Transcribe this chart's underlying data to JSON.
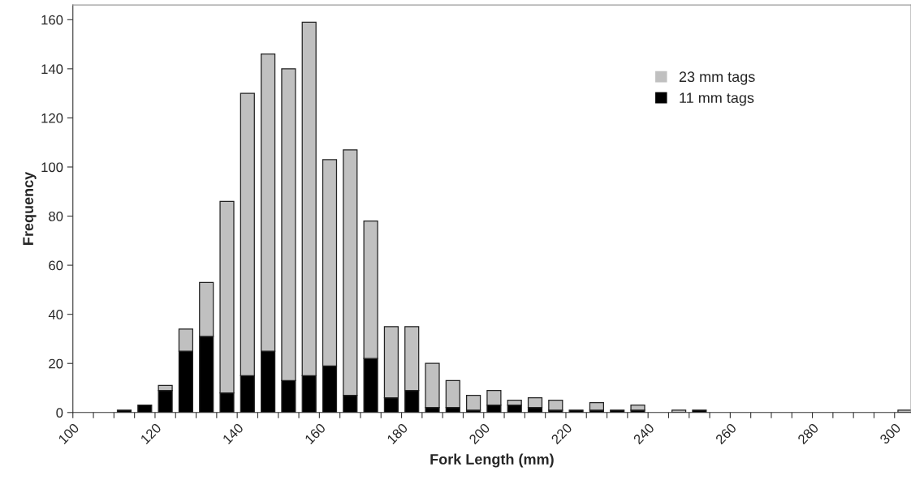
{
  "chart_data": {
    "type": "bar",
    "xlabel": "Fork Length (mm)",
    "ylabel": "Frequency",
    "x": [
      102.5,
      107.5,
      112.5,
      117.5,
      122.5,
      127.5,
      132.5,
      137.5,
      142.5,
      147.5,
      152.5,
      157.5,
      162.5,
      167.5,
      172.5,
      177.5,
      182.5,
      187.5,
      192.5,
      197.5,
      202.5,
      207.5,
      212.5,
      217.5,
      222.5,
      227.5,
      232.5,
      237.5,
      242.5,
      247.5,
      252.5,
      257.5,
      262.5,
      267.5,
      272.5,
      277.5,
      282.5,
      287.5,
      292.5,
      297.5,
      302.5
    ],
    "stacked": true,
    "series": [
      {
        "name": "11 mm tags",
        "color": "#000000",
        "values": [
          0,
          0,
          1,
          3,
          9,
          25,
          31,
          8,
          15,
          25,
          13,
          15,
          19,
          7,
          22,
          6,
          9,
          2,
          2,
          1,
          3,
          3,
          2,
          1,
          1,
          1,
          1,
          1,
          0,
          0,
          1,
          0,
          0,
          0,
          0,
          0,
          0,
          0,
          0,
          0,
          0
        ]
      },
      {
        "name": "23 mm tags",
        "color": "#c0c0c0",
        "values": [
          0,
          0,
          0,
          0,
          2,
          9,
          22,
          78,
          115,
          121,
          127,
          144,
          84,
          100,
          56,
          29,
          26,
          18,
          11,
          6,
          6,
          2,
          4,
          4,
          0,
          3,
          0,
          2,
          0,
          1,
          0,
          0,
          0,
          0,
          0,
          0,
          0,
          0,
          0,
          0,
          1
        ]
      }
    ],
    "xlim": [
      100,
      304
    ],
    "xticks": [
      100,
      {
        "value": 105,
        "label": null
      },
      {
        "value": 110,
        "label": null
      },
      {
        "value": 115,
        "label": null
      },
      120,
      {
        "value": 125,
        "label": null
      },
      {
        "value": 130,
        "label": null
      },
      {
        "value": 135,
        "label": null
      },
      140,
      {
        "value": 145,
        "label": null
      },
      {
        "value": 150,
        "label": null
      },
      {
        "value": 155,
        "label": null
      },
      160,
      {
        "value": 165,
        "label": null
      },
      {
        "value": 170,
        "label": null
      },
      {
        "value": 175,
        "label": null
      },
      180,
      {
        "value": 185,
        "label": null
      },
      {
        "value": 190,
        "label": null
      },
      {
        "value": 195,
        "label": null
      },
      200,
      {
        "value": 205,
        "label": null
      },
      {
        "value": 210,
        "label": null
      },
      {
        "value": 215,
        "label": null
      },
      220,
      {
        "value": 225,
        "label": null
      },
      {
        "value": 230,
        "label": null
      },
      {
        "value": 235,
        "label": null
      },
      240,
      {
        "value": 245,
        "label": null
      },
      {
        "value": 250,
        "label": null
      },
      {
        "value": 255,
        "label": null
      },
      260,
      {
        "value": 265,
        "label": null
      },
      {
        "value": 270,
        "label": null
      },
      {
        "value": 275,
        "label": null
      },
      280,
      {
        "value": 285,
        "label": null
      },
      {
        "value": 290,
        "label": null
      },
      {
        "value": 295,
        "label": null
      },
      300
    ],
    "ylim": [
      0,
      166
    ],
    "yticks": [
      0,
      20,
      40,
      60,
      80,
      100,
      120,
      140,
      160
    ],
    "grid": false,
    "legend": "top right"
  }
}
